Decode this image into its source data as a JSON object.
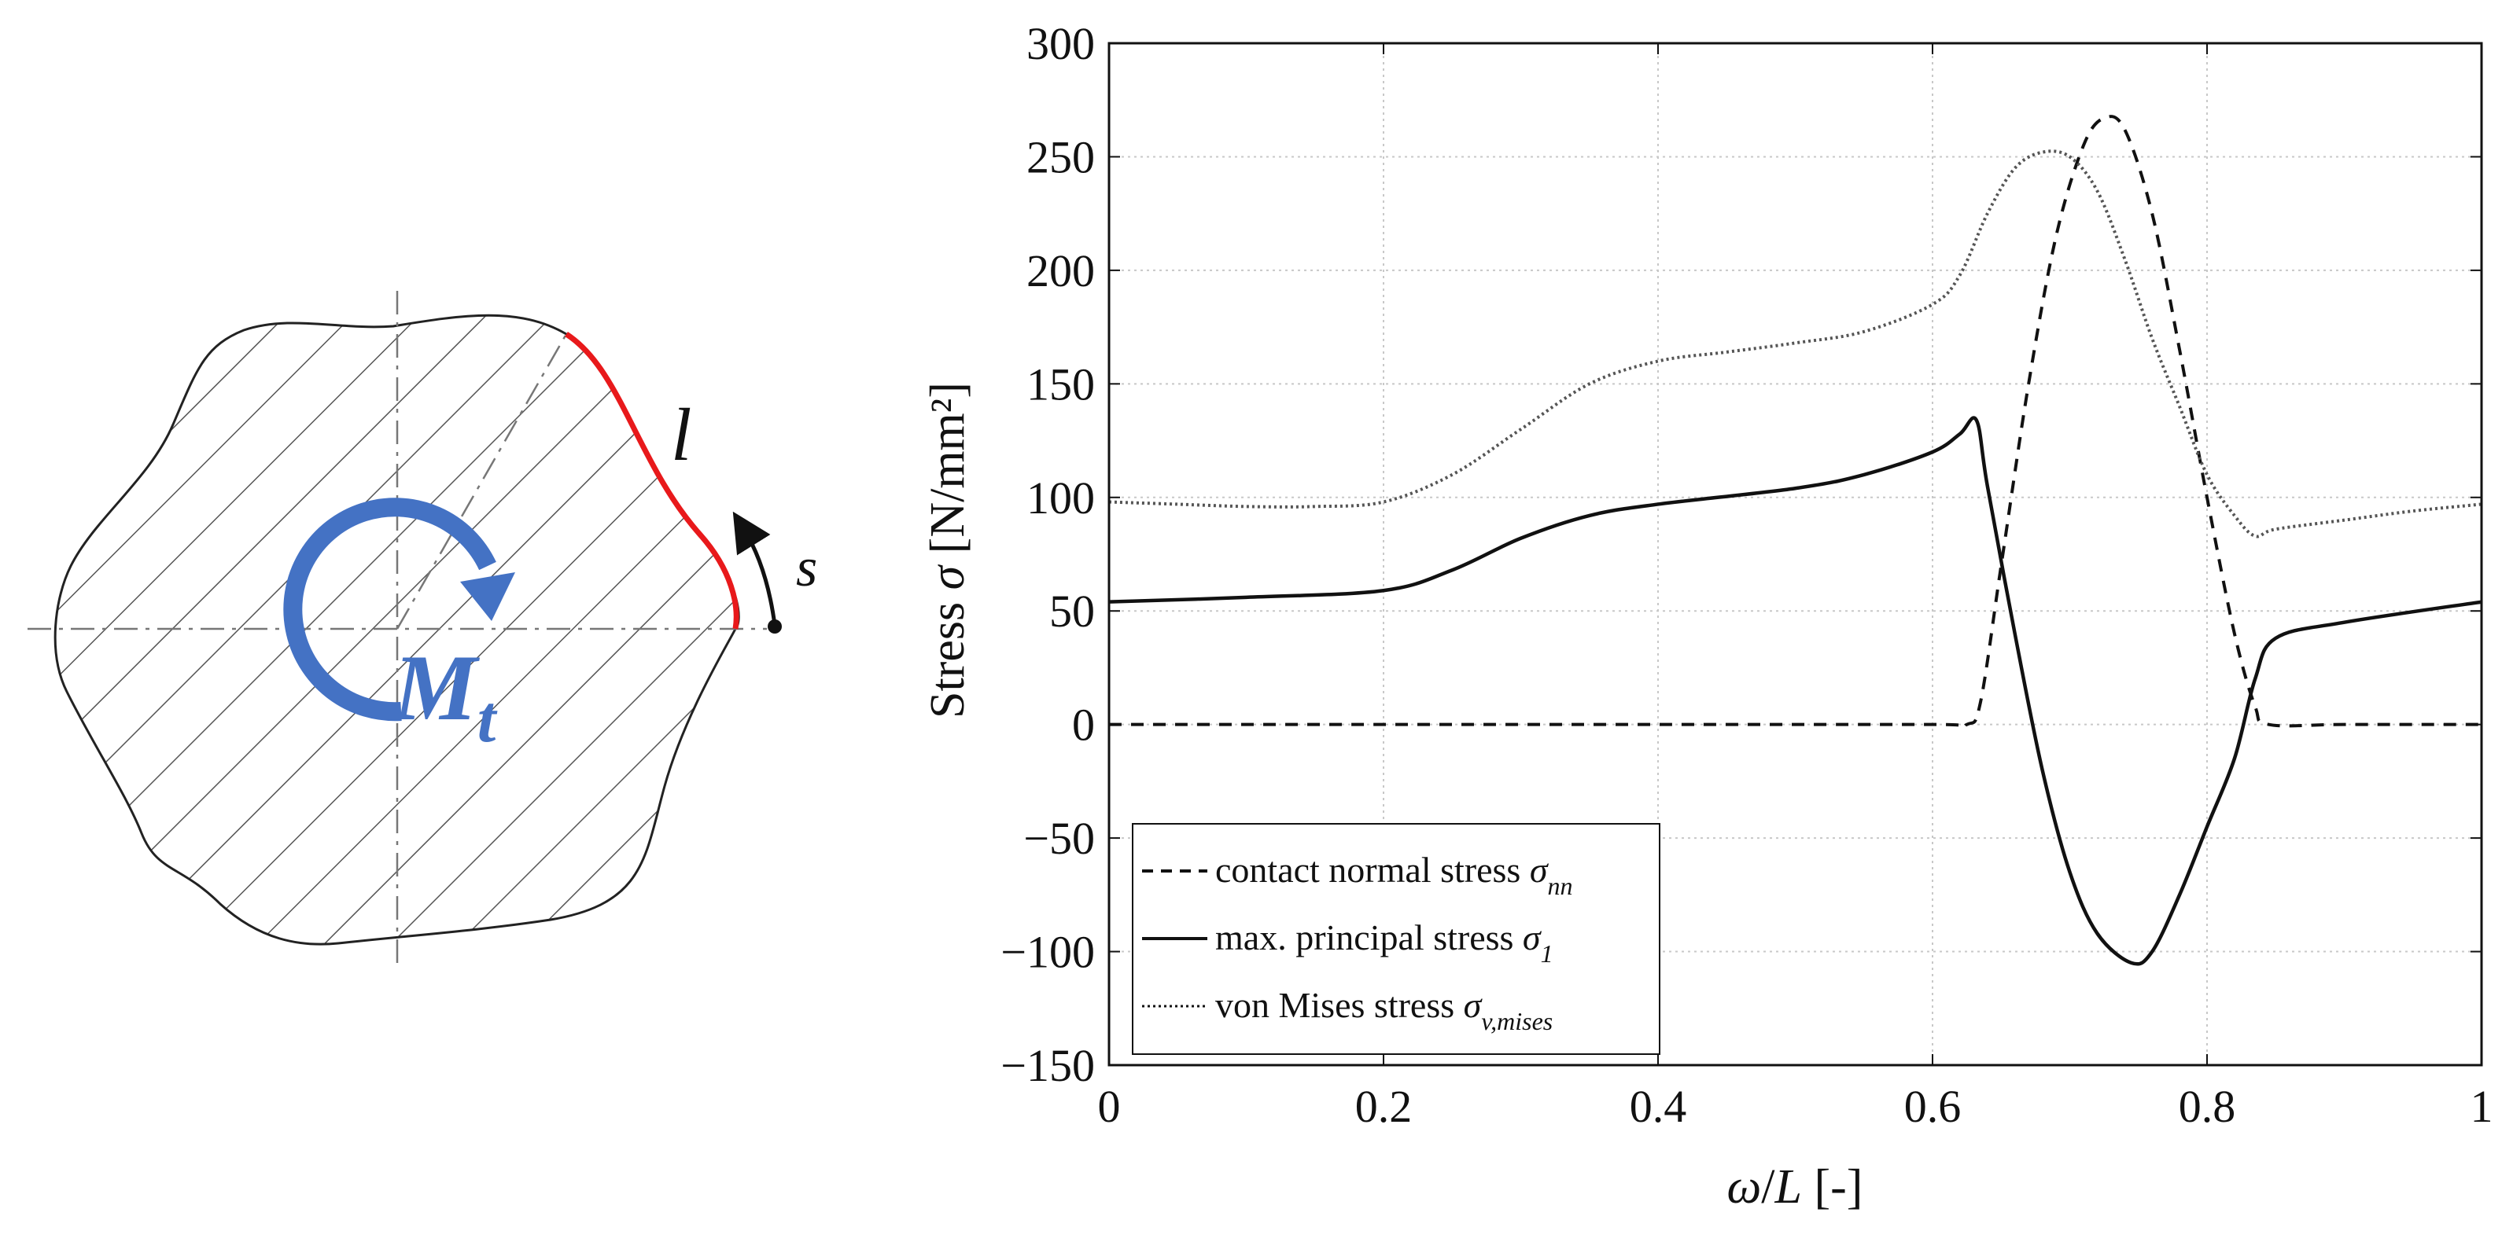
{
  "diagram": {
    "moment_label": "M",
    "moment_sub": "t",
    "length_label": "l",
    "arc_label": "s",
    "colors": {
      "moment": "#4472C4",
      "highlight": "#E8191B",
      "outline": "#222222",
      "hatch": "#555555"
    }
  },
  "chart_data": {
    "type": "line",
    "xlabel_sym": "ω",
    "xlabel_sym2": "L",
    "xlabel_rest": " [-]",
    "ylabel_main": "Stress ",
    "ylabel_sym": "σ",
    "ylabel_unit": " [N/mm²]",
    "xlim": [
      0,
      1
    ],
    "ylim": [
      -150,
      300
    ],
    "xticks": [
      "0",
      "0.2",
      "0.4",
      "0.6",
      "0.8",
      "1"
    ],
    "xtick_values": [
      0,
      0.2,
      0.4,
      0.6,
      0.8,
      1
    ],
    "yticks": [
      "300",
      "250",
      "200",
      "150",
      "100",
      "50",
      "0",
      "−50",
      "−100",
      "−150"
    ],
    "ytick_values": [
      300,
      250,
      200,
      150,
      100,
      50,
      0,
      -50,
      -100,
      -150
    ],
    "grid": true,
    "legend_position": "bottom-left",
    "series": [
      {
        "name": "contact normal stress",
        "symbol": "σ",
        "subscript": "nn",
        "style": "dashed",
        "x": [
          0,
          0.2,
          0.4,
          0.6,
          0.625,
          0.635,
          0.65,
          0.67,
          0.69,
          0.71,
          0.725,
          0.74,
          0.76,
          0.78,
          0.8,
          0.82,
          0.835,
          0.845,
          0.9,
          1.0
        ],
        "y": [
          0,
          0,
          0,
          0,
          0,
          10,
          70,
          150,
          215,
          255,
          267,
          262,
          225,
          165,
          100,
          40,
          8,
          0,
          0,
          0
        ]
      },
      {
        "name": "max. principal stress",
        "symbol": "σ",
        "subscript": "1",
        "style": "solid",
        "x": [
          0,
          0.1,
          0.2,
          0.25,
          0.3,
          0.35,
          0.4,
          0.5,
          0.55,
          0.6,
          0.62,
          0.632,
          0.64,
          0.66,
          0.68,
          0.7,
          0.72,
          0.745,
          0.76,
          0.78,
          0.8,
          0.82,
          0.835,
          0.85,
          0.9,
          1.0
        ],
        "y": [
          54,
          56,
          59,
          68,
          82,
          92,
          97,
          104,
          110,
          120,
          128,
          134,
          105,
          40,
          -20,
          -65,
          -92,
          -105,
          -100,
          -75,
          -45,
          -15,
          20,
          38,
          45,
          54
        ]
      },
      {
        "name": "von Mises stress",
        "symbol": "σ",
        "subscript": "v,mises",
        "style": "dotted",
        "x": [
          0,
          0.05,
          0.1,
          0.15,
          0.2,
          0.25,
          0.3,
          0.35,
          0.4,
          0.45,
          0.5,
          0.55,
          0.6,
          0.62,
          0.64,
          0.66,
          0.68,
          0.7,
          0.72,
          0.74,
          0.76,
          0.78,
          0.8,
          0.82,
          0.835,
          0.85,
          0.9,
          0.95,
          1.0
        ],
        "y": [
          98,
          97,
          96,
          96,
          98,
          110,
          130,
          150,
          160,
          164,
          168,
          173,
          185,
          198,
          225,
          245,
          252,
          250,
          235,
          205,
          170,
          140,
          110,
          92,
          83,
          86,
          90,
          94,
          97
        ]
      }
    ]
  }
}
